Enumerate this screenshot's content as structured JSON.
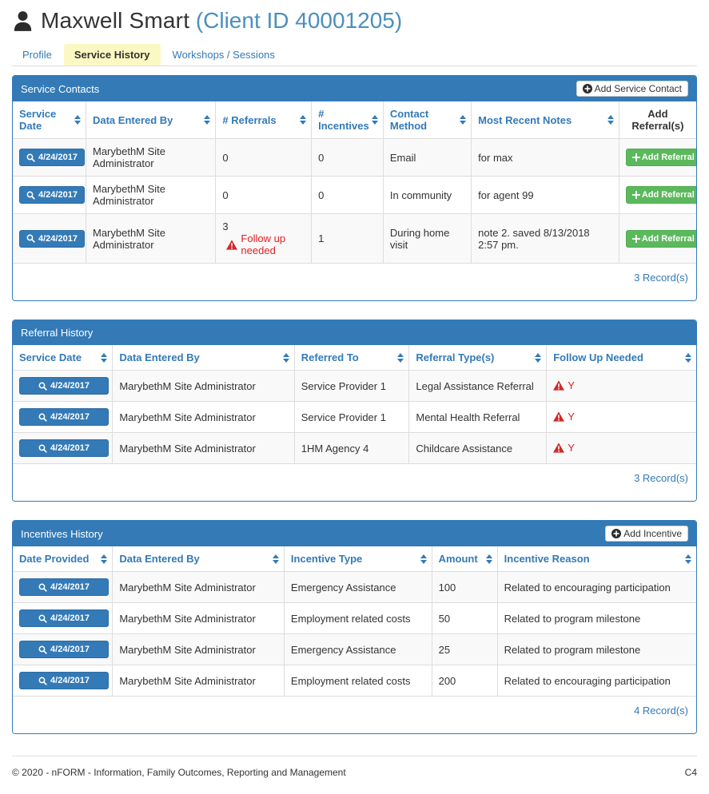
{
  "colors": {
    "primary_blue": "#337ab7",
    "primary_blue_dark": "#2e6da4",
    "client_id_blue": "#4a90bd",
    "active_tab_yellow": "#fcf8c3",
    "success_green": "#5cb85c",
    "danger_red": "#e02020",
    "row_stripe": "#f9f9f9"
  },
  "header": {
    "client_name": "Maxwell Smart",
    "client_id": "(Client ID 40001205)"
  },
  "tabs": [
    {
      "label": "Profile",
      "active": false
    },
    {
      "label": "Service History",
      "active": true
    },
    {
      "label": "Workshops / Sessions",
      "active": false
    }
  ],
  "panels": {
    "service_contacts": {
      "title": "Service Contacts",
      "add_button_label": "Add Service Contact",
      "row_button_label": "Add Referral",
      "columns": [
        {
          "label": "Service Date",
          "sortable": true
        },
        {
          "label": "Data Entered By",
          "sortable": true
        },
        {
          "label": "# Referrals",
          "sortable": true
        },
        {
          "label": "# Incentives",
          "sortable": true
        },
        {
          "label": "Contact Method",
          "sortable": true
        },
        {
          "label": "Most Recent Notes",
          "sortable": true
        },
        {
          "label": "Add Referral(s)",
          "sortable": false
        }
      ],
      "rows": [
        {
          "service_date": "4/24/2017",
          "data_entered_by": "MarybethM Site Administrator",
          "referrals": "0",
          "follow_up_needed": false,
          "follow_up_text": "",
          "incentives": "0",
          "contact_method": "Email",
          "most_recent_notes": "for max"
        },
        {
          "service_date": "4/24/2017",
          "data_entered_by": "MarybethM Site Administrator",
          "referrals": "0",
          "follow_up_needed": false,
          "follow_up_text": "",
          "incentives": "0",
          "contact_method": "In community",
          "most_recent_notes": "for agent 99"
        },
        {
          "service_date": "4/24/2017",
          "data_entered_by": "MarybethM Site Administrator",
          "referrals": "3",
          "follow_up_needed": true,
          "follow_up_text": "Follow up needed",
          "incentives": "1",
          "contact_method": "During home visit",
          "most_recent_notes": "note 2. saved 8/13/2018 2:57 pm."
        }
      ],
      "record_count": "3 Record(s)"
    },
    "referral_history": {
      "title": "Referral History",
      "columns": [
        {
          "label": "Service Date",
          "sortable": true
        },
        {
          "label": "Data Entered By",
          "sortable": true
        },
        {
          "label": "Referred To",
          "sortable": true
        },
        {
          "label": "Referral Type(s)",
          "sortable": true
        },
        {
          "label": "Follow Up Needed",
          "sortable": true
        }
      ],
      "rows": [
        {
          "service_date": "4/24/2017",
          "data_entered_by": "MarybethM Site Administrator",
          "referred_to": "Service Provider 1",
          "referral_types": "Legal Assistance Referral",
          "follow_up": "Y"
        },
        {
          "service_date": "4/24/2017",
          "data_entered_by": "MarybethM Site Administrator",
          "referred_to": "Service Provider 1",
          "referral_types": "Mental Health Referral",
          "follow_up": "Y"
        },
        {
          "service_date": "4/24/2017",
          "data_entered_by": "MarybethM Site Administrator",
          "referred_to": "1HM Agency 4",
          "referral_types": "Childcare Assistance",
          "follow_up": "Y"
        }
      ],
      "record_count": "3 Record(s)"
    },
    "incentives_history": {
      "title": "Incentives History",
      "add_button_label": "Add Incentive",
      "columns": [
        {
          "label": "Date Provided",
          "sortable": true
        },
        {
          "label": "Data Entered By",
          "sortable": true
        },
        {
          "label": "Incentive Type",
          "sortable": true
        },
        {
          "label": "Amount",
          "sortable": true
        },
        {
          "label": "Incentive Reason",
          "sortable": true
        }
      ],
      "rows": [
        {
          "date_provided": "4/24/2017",
          "data_entered_by": "MarybethM Site Administrator",
          "incentive_type": "Emergency Assistance",
          "amount": "100",
          "incentive_reason": "Related to encouraging participation"
        },
        {
          "date_provided": "4/24/2017",
          "data_entered_by": "MarybethM Site Administrator",
          "incentive_type": "Employment related costs",
          "amount": "50",
          "incentive_reason": "Related to program milestone"
        },
        {
          "date_provided": "4/24/2017",
          "data_entered_by": "MarybethM Site Administrator",
          "incentive_type": "Emergency Assistance",
          "amount": "25",
          "incentive_reason": "Related to program milestone"
        },
        {
          "date_provided": "4/24/2017",
          "data_entered_by": "MarybethM Site Administrator",
          "incentive_type": "Employment related costs",
          "amount": "200",
          "incentive_reason": "Related to encouraging participation"
        }
      ],
      "record_count": "4 Record(s)"
    }
  },
  "footer": {
    "copyright": "© 2020 - nFORM - Information, Family Outcomes, Reporting and Management",
    "page_code": "C4"
  }
}
